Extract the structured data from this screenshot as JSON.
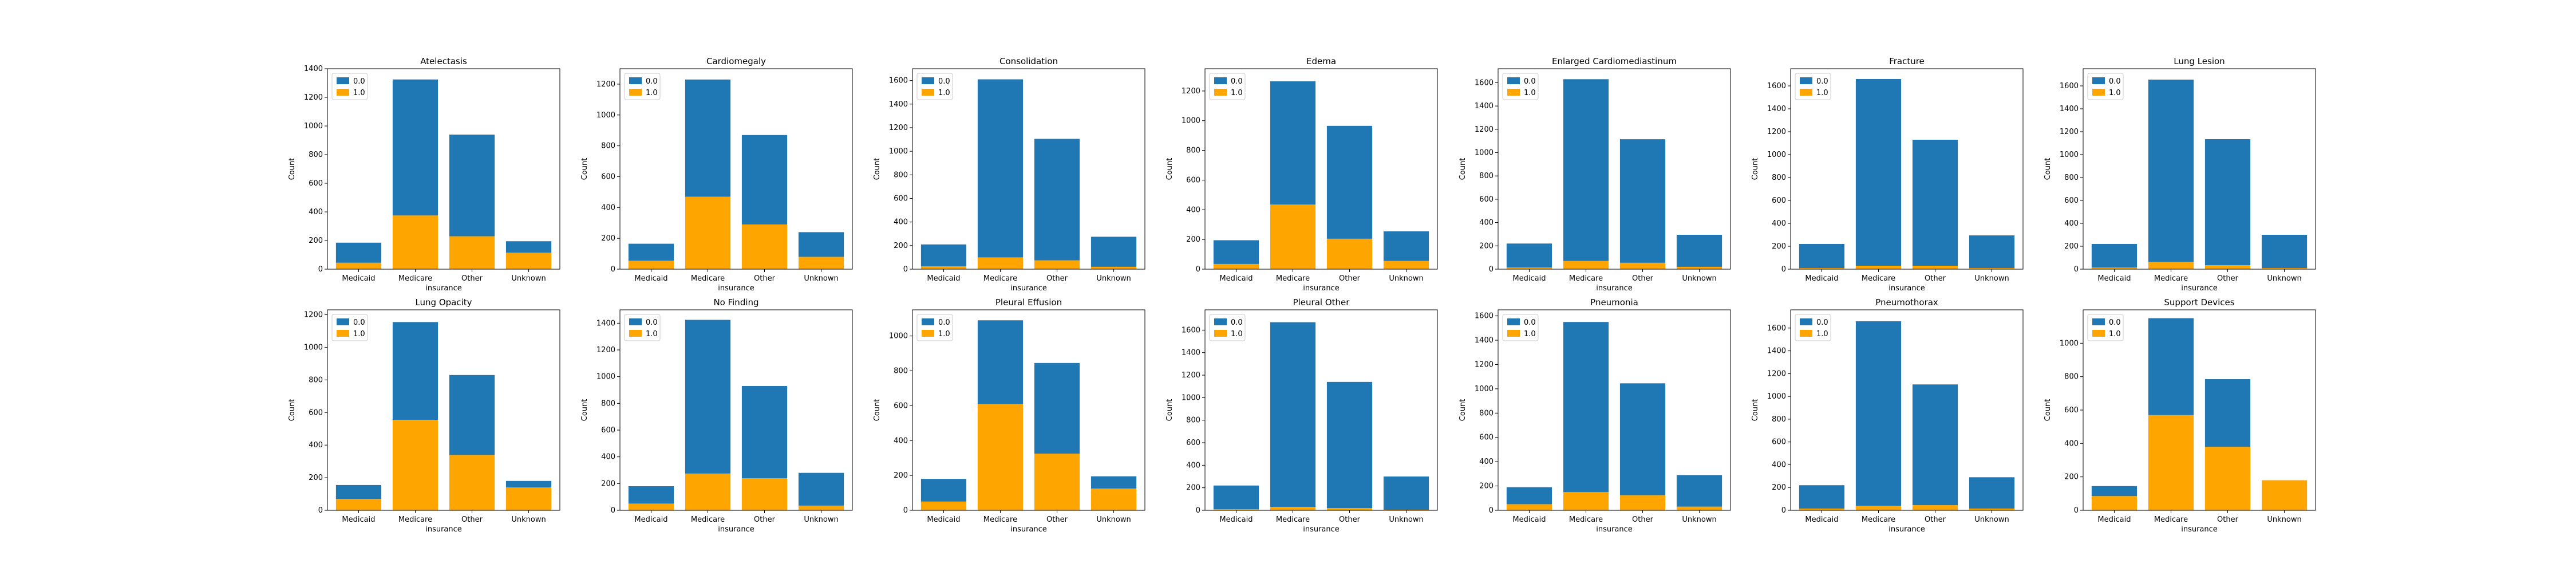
{
  "colors": {
    "c0": "#1f77b4",
    "c1": "#ffa500"
  },
  "legend_position": "upper-left",
  "chart_data": [
    {
      "type": "bar",
      "stacked": true,
      "title": "Atelectasis",
      "xlabel": "insurance",
      "ylabel": "Count",
      "categories": [
        "Medicaid",
        "Medicare",
        "Other",
        "Unknown"
      ],
      "ylim": [
        0,
        1400
      ],
      "yticks": [
        0,
        200,
        400,
        600,
        800,
        1000,
        1200,
        1400
      ],
      "series": [
        {
          "name": "0.0",
          "values": [
            140,
            950,
            710,
            80
          ]
        },
        {
          "name": "1.0",
          "values": [
            45,
            375,
            230,
            115
          ]
        }
      ]
    },
    {
      "type": "bar",
      "stacked": true,
      "title": "Cardiomegaly",
      "xlabel": "insurance",
      "ylabel": "Count",
      "categories": [
        "Medicaid",
        "Medicare",
        "Other",
        "Unknown"
      ],
      "ylim": [
        0,
        1300
      ],
      "yticks": [
        0,
        200,
        400,
        600,
        800,
        1000,
        1200
      ],
      "series": [
        {
          "name": "0.0",
          "values": [
            110,
            760,
            580,
            160
          ]
        },
        {
          "name": "1.0",
          "values": [
            55,
            470,
            290,
            80
          ]
        }
      ]
    },
    {
      "type": "bar",
      "stacked": true,
      "title": "Consolidation",
      "xlabel": "insurance",
      "ylabel": "Count",
      "categories": [
        "Medicaid",
        "Medicare",
        "Other",
        "Unknown"
      ],
      "ylim": [
        0,
        1700
      ],
      "yticks": [
        0,
        200,
        400,
        600,
        800,
        1000,
        1200,
        1400,
        1600
      ],
      "series": [
        {
          "name": "0.0",
          "values": [
            185,
            1510,
            1030,
            255
          ]
        },
        {
          "name": "1.0",
          "values": [
            25,
            100,
            75,
            20
          ]
        }
      ]
    },
    {
      "type": "bar",
      "stacked": true,
      "title": "Edema",
      "xlabel": "insurance",
      "ylabel": "Count",
      "categories": [
        "Medicaid",
        "Medicare",
        "Other",
        "Unknown"
      ],
      "ylim": [
        0,
        1350
      ],
      "yticks": [
        0,
        200,
        400,
        600,
        800,
        1000,
        1200
      ],
      "series": [
        {
          "name": "0.0",
          "values": [
            160,
            830,
            760,
            200
          ]
        },
        {
          "name": "1.0",
          "values": [
            35,
            435,
            205,
            55
          ]
        }
      ]
    },
    {
      "type": "bar",
      "stacked": true,
      "title": "Enlarged Cardiomediastinum",
      "xlabel": "insurance",
      "ylabel": "Count",
      "categories": [
        "Medicaid",
        "Medicare",
        "Other",
        "Unknown"
      ],
      "ylim": [
        0,
        1720
      ],
      "yticks": [
        0,
        200,
        400,
        600,
        800,
        1000,
        1200,
        1400,
        1600
      ],
      "series": [
        {
          "name": "0.0",
          "values": [
            205,
            1560,
            1060,
            275
          ]
        },
        {
          "name": "1.0",
          "values": [
            15,
            70,
            55,
            20
          ]
        }
      ]
    },
    {
      "type": "bar",
      "stacked": true,
      "title": "Fracture",
      "xlabel": "insurance",
      "ylabel": "Count",
      "categories": [
        "Medicaid",
        "Medicare",
        "Other",
        "Unknown"
      ],
      "ylim": [
        0,
        1750
      ],
      "yticks": [
        0,
        200,
        400,
        600,
        800,
        1000,
        1200,
        1400,
        1600
      ],
      "series": [
        {
          "name": "0.0",
          "values": [
            210,
            1630,
            1100,
            285
          ]
        },
        {
          "name": "1.0",
          "values": [
            10,
            30,
            30,
            10
          ]
        }
      ]
    },
    {
      "type": "bar",
      "stacked": true,
      "title": "Lung Lesion",
      "xlabel": "insurance",
      "ylabel": "Count",
      "categories": [
        "Medicaid",
        "Medicare",
        "Other",
        "Unknown"
      ],
      "ylim": [
        0,
        1750
      ],
      "yticks": [
        0,
        200,
        400,
        600,
        800,
        1000,
        1200,
        1400,
        1600
      ],
      "series": [
        {
          "name": "0.0",
          "values": [
            205,
            1590,
            1100,
            290
          ]
        },
        {
          "name": "1.0",
          "values": [
            15,
            65,
            35,
            10
          ]
        }
      ]
    },
    {
      "type": "bar",
      "stacked": true,
      "title": "Lung Opacity",
      "xlabel": "insurance",
      "ylabel": "Count",
      "categories": [
        "Medicaid",
        "Medicare",
        "Other",
        "Unknown"
      ],
      "ylim": [
        0,
        1230
      ],
      "yticks": [
        0,
        200,
        400,
        600,
        800,
        1000,
        1200
      ],
      "series": [
        {
          "name": "0.0",
          "values": [
            85,
            600,
            490,
            40
          ]
        },
        {
          "name": "1.0",
          "values": [
            70,
            555,
            340,
            140
          ]
        }
      ]
    },
    {
      "type": "bar",
      "stacked": true,
      "title": "No Finding",
      "xlabel": "insurance",
      "ylabel": "Count",
      "categories": [
        "Medicaid",
        "Medicare",
        "Other",
        "Unknown"
      ],
      "ylim": [
        0,
        1500
      ],
      "yticks": [
        0,
        200,
        400,
        600,
        800,
        1000,
        1200,
        1400
      ],
      "series": [
        {
          "name": "0.0",
          "values": [
            130,
            1150,
            690,
            245
          ]
        },
        {
          "name": "1.0",
          "values": [
            50,
            275,
            240,
            35
          ]
        }
      ]
    },
    {
      "type": "bar",
      "stacked": true,
      "title": "Pleural Effusion",
      "xlabel": "insurance",
      "ylabel": "Count",
      "categories": [
        "Medicaid",
        "Medicare",
        "Other",
        "Unknown"
      ],
      "ylim": [
        0,
        1150
      ],
      "yticks": [
        0,
        200,
        400,
        600,
        800,
        1000
      ],
      "series": [
        {
          "name": "0.0",
          "values": [
            130,
            480,
            520,
            70
          ]
        },
        {
          "name": "1.0",
          "values": [
            50,
            610,
            325,
            125
          ]
        }
      ]
    },
    {
      "type": "bar",
      "stacked": true,
      "title": "Pleural Other",
      "xlabel": "insurance",
      "ylabel": "Count",
      "categories": [
        "Medicaid",
        "Medicare",
        "Other",
        "Unknown"
      ],
      "ylim": [
        0,
        1780
      ],
      "yticks": [
        0,
        200,
        400,
        600,
        800,
        1000,
        1200,
        1400,
        1600
      ],
      "series": [
        {
          "name": "0.0",
          "values": [
            210,
            1640,
            1120,
            295
          ]
        },
        {
          "name": "1.0",
          "values": [
            10,
            30,
            20,
            5
          ]
        }
      ]
    },
    {
      "type": "bar",
      "stacked": true,
      "title": "Pneumonia",
      "xlabel": "insurance",
      "ylabel": "Count",
      "categories": [
        "Medicaid",
        "Medicare",
        "Other",
        "Unknown"
      ],
      "ylim": [
        0,
        1650
      ],
      "yticks": [
        0,
        200,
        400,
        600,
        800,
        1000,
        1200,
        1400,
        1600
      ],
      "series": [
        {
          "name": "0.0",
          "values": [
            140,
            1400,
            920,
            260
          ]
        },
        {
          "name": "1.0",
          "values": [
            50,
            150,
            125,
            30
          ]
        }
      ]
    },
    {
      "type": "bar",
      "stacked": true,
      "title": "Pneumothorax",
      "xlabel": "insurance",
      "ylabel": "Count",
      "categories": [
        "Medicaid",
        "Medicare",
        "Other",
        "Unknown"
      ],
      "ylim": [
        0,
        1760
      ],
      "yticks": [
        0,
        200,
        400,
        600,
        800,
        1000,
        1200,
        1400,
        1600
      ],
      "series": [
        {
          "name": "0.0",
          "values": [
            205,
            1620,
            1060,
            275
          ]
        },
        {
          "name": "1.0",
          "values": [
            15,
            40,
            45,
            15
          ]
        }
      ]
    },
    {
      "type": "bar",
      "stacked": true,
      "title": "Support Devices",
      "xlabel": "insurance",
      "ylabel": "Count",
      "categories": [
        "Medicaid",
        "Medicare",
        "Other",
        "Unknown"
      ],
      "ylim": [
        0,
        1200
      ],
      "yticks": [
        0,
        200,
        400,
        600,
        800,
        1000
      ],
      "series": [
        {
          "name": "0.0",
          "values": [
            60,
            580,
            405,
            0
          ]
        },
        {
          "name": "1.0",
          "values": [
            85,
            570,
            380,
            180
          ]
        }
      ]
    }
  ]
}
